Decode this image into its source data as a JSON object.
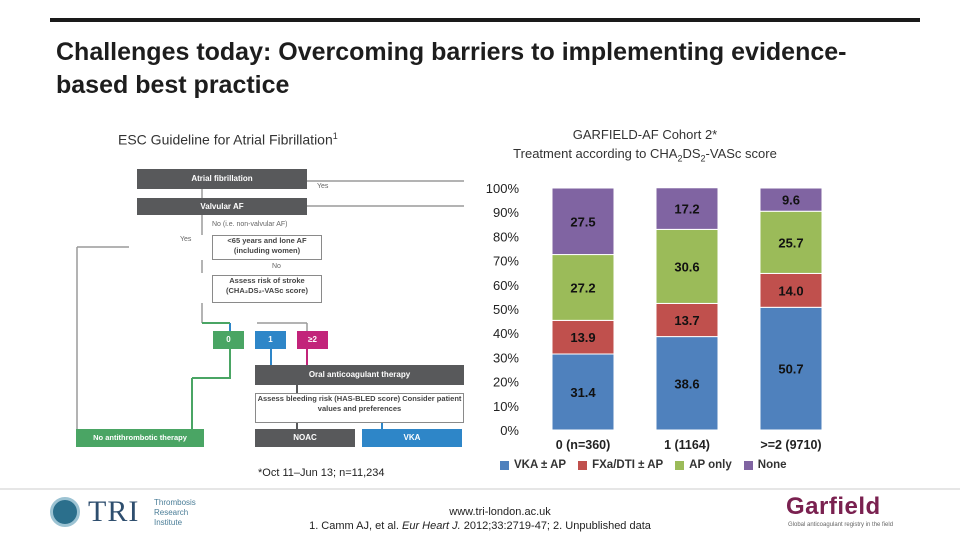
{
  "slide": {
    "title": "Challenges today: Overcoming barriers to implementing evidence-based best practice",
    "left_subtitle": "ESC Guideline for Atrial Fibrillation",
    "left_subtitle_sup": "1",
    "right_subtitle_line1": "GARFIELD-AF Cohort 2*",
    "right_subtitle_line2_a": "Treatment according to CHA",
    "right_subtitle_sub1": "2",
    "right_subtitle_line2_b": "DS",
    "right_subtitle_sub2": "2",
    "right_subtitle_line2_c": "-VASc score",
    "footnote": "*Oct 11–Jun 13; n=11,234",
    "url": "www.tri-london.ac.uk",
    "citation_a": "1. Camm AJ, et al. ",
    "citation_journal": "Eur Heart J.",
    "citation_b": " 2012;33:2719-47; 2. Unpublished data"
  },
  "flowchart": {
    "af": "Atrial fibrillation",
    "yes1": "Yes",
    "valvular": "Valvular AF",
    "no1": "No (i.e. non-valvular AF)",
    "yes2": "Yes",
    "lt65": "<65 years and lone AF (including women)",
    "no2": "No",
    "assess_stroke": "Assess risk of stroke (CHA₂DS₂-VASc score)",
    "score0": "0",
    "score1": "1",
    "score2": "≥2",
    "oac": "Oral anticoagulant therapy",
    "bleed": "Assess bleeding risk (HAS-BLED score) Consider patient values and preferences",
    "noat": "No antithrombotic therapy",
    "noac": "NOAC",
    "vka": "VKA",
    "colors": {
      "dark": "#58595b",
      "green": "#4aa564",
      "blue": "#2e86c8",
      "pink": "#c2247a"
    }
  },
  "chart_data": {
    "type": "bar",
    "stacked": true,
    "categories": [
      "0 (n=360)",
      "1 (1164)",
      ">=2 (9710)"
    ],
    "series": [
      {
        "name": "VKA ± AP",
        "color": "#4f81bd",
        "values": [
          31.4,
          38.6,
          50.7
        ]
      },
      {
        "name": "FXa/DTI ± AP",
        "color": "#c0504d",
        "values": [
          13.9,
          13.7,
          14.0
        ]
      },
      {
        "name": "AP only",
        "color": "#9bbb59",
        "values": [
          27.2,
          30.6,
          25.7
        ]
      },
      {
        "name": "None",
        "color": "#8064a2",
        "values": [
          27.5,
          17.2,
          9.6
        ]
      }
    ],
    "labels": [
      [
        "31.4",
        "38.6",
        "50.7"
      ],
      [
        "13.9",
        "13.7",
        "14.0"
      ],
      [
        "27.2",
        "30.6",
        "25.7"
      ],
      [
        "27.5",
        "17.2",
        "9.6"
      ]
    ],
    "yticks": [
      "0%",
      "10%",
      "20%",
      "30%",
      "40%",
      "50%",
      "60%",
      "70%",
      "80%",
      "90%",
      "100%"
    ],
    "ylim": [
      0,
      100
    ],
    "legend_position": "bottom"
  },
  "logos": {
    "tri_big": "TRI",
    "tri_small_1": "Thrombosis",
    "tri_small_2": "Research",
    "tri_small_3": "Institute",
    "garfield": "Garfield",
    "garfield_tag": "Global anticoagulant registry in the field"
  }
}
